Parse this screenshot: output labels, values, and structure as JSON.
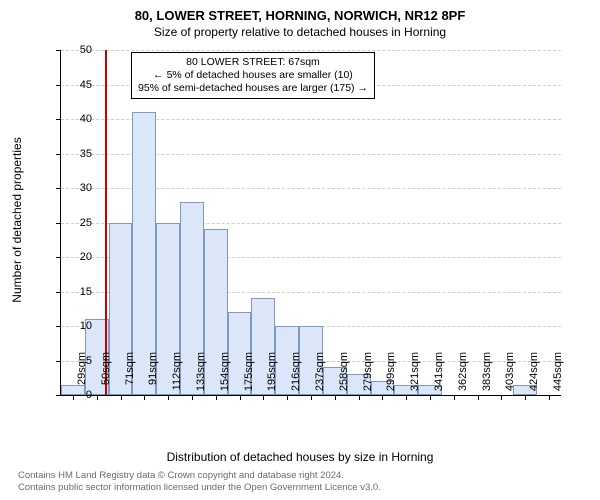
{
  "title": "80, LOWER STREET, HORNING, NORWICH, NR12 8PF",
  "subtitle": "Size of property relative to detached houses in Horning",
  "ylabel": "Number of detached properties",
  "xlabel": "Distribution of detached houses by size in Horning",
  "chart": {
    "type": "histogram",
    "ylim": [
      0,
      50
    ],
    "ytick_step": 5,
    "bar_color": "#dbe6f8",
    "bar_border": "#7f98c8",
    "grid_color": "#cccccc",
    "background_color": "#ffffff",
    "marker_line_color": "#cc0000",
    "bars": [
      {
        "label": "29sqm",
        "value": 1.5
      },
      {
        "label": "50sqm",
        "value": 11
      },
      {
        "label": "71sqm",
        "value": 25
      },
      {
        "label": "91sqm",
        "value": 41
      },
      {
        "label": "112sqm",
        "value": 25
      },
      {
        "label": "133sqm",
        "value": 28
      },
      {
        "label": "154sqm",
        "value": 24
      },
      {
        "label": "175sqm",
        "value": 12
      },
      {
        "label": "195sqm",
        "value": 14
      },
      {
        "label": "216sqm",
        "value": 10
      },
      {
        "label": "237sqm",
        "value": 10
      },
      {
        "label": "258sqm",
        "value": 4
      },
      {
        "label": "279sqm",
        "value": 3
      },
      {
        "label": "299sqm",
        "value": 2
      },
      {
        "label": "321sqm",
        "value": 1.5
      },
      {
        "label": "341sqm",
        "value": 1.5
      },
      {
        "label": "362sqm",
        "value": 0
      },
      {
        "label": "383sqm",
        "value": 0
      },
      {
        "label": "403sqm",
        "value": 0
      },
      {
        "label": "424sqm",
        "value": 1.5
      },
      {
        "label": "445sqm",
        "value": 0
      }
    ],
    "marker_bin_index": 1.83
  },
  "annotation": {
    "line1": "80 LOWER STREET: 67sqm",
    "line2": "← 5% of detached houses are smaller (10)",
    "line3": "95% of semi-detached houses are larger (175) →"
  },
  "footer1": "Contains HM Land Registry data © Crown copyright and database right 2024.",
  "footer2": "Contains public sector information licensed under the Open Government Licence v3.0."
}
